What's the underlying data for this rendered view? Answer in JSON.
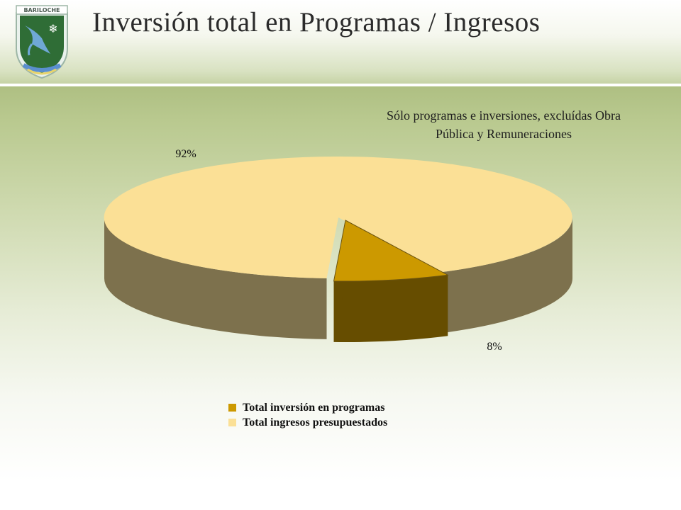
{
  "header": {
    "title": "Inversión total en Programas / Ingresos",
    "crest_text": "BARILOCHE"
  },
  "chart_data": {
    "type": "pie",
    "style": "3d-exploded",
    "annotation": "Sólo programas e inversiones, excluídas Obra Pública y Remuneraciones",
    "slices": [
      {
        "label": "Total inversión en programas",
        "value": 8,
        "display": "8%",
        "color": "#cc9900",
        "side_color": "#664d00"
      },
      {
        "label": "Total ingresos presupuestados",
        "value": 92,
        "display": "92%",
        "color": "#fbe096",
        "side_color": "#7d714d"
      }
    ],
    "legend_position": "bottom"
  }
}
